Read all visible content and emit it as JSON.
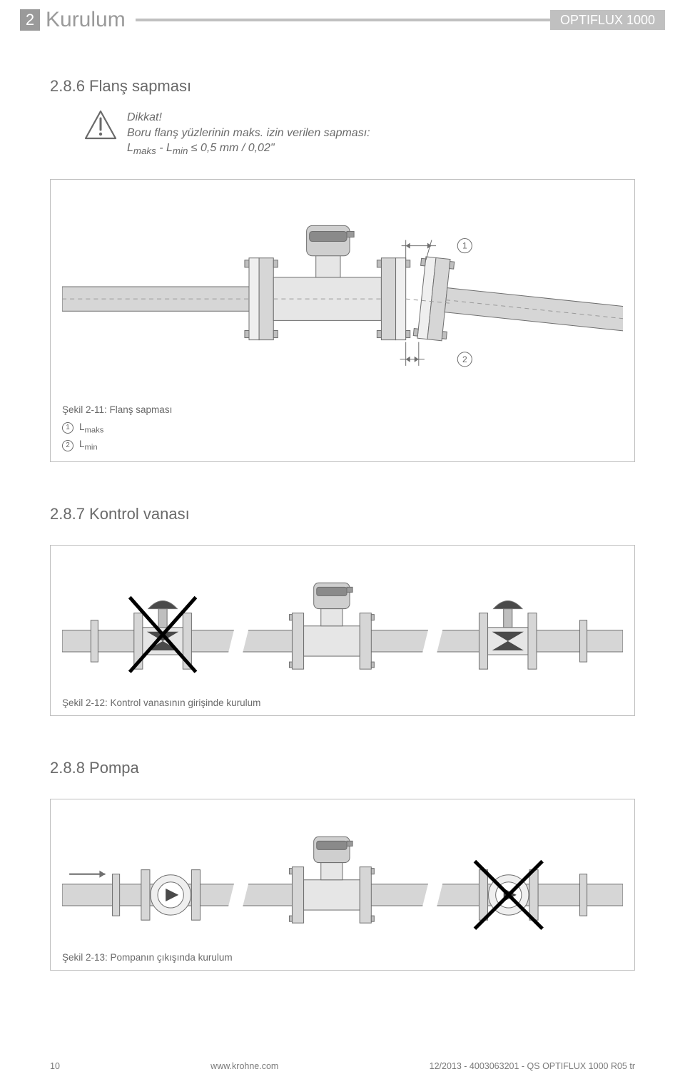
{
  "header": {
    "chapter_number": "2",
    "chapter_title": "Kurulum",
    "brand": "OPTIFLUX 1000"
  },
  "section_2_8_6": {
    "heading": "2.8.6  Flanş sapması",
    "warning": {
      "line1": "Dikkat!",
      "line2": "Boru flanş yüzlerinin maks. izin verilen sapması:",
      "line3_html": "L<sub>maks</sub> - L<sub>min</sub> ≤ 0,5 mm / 0,02\""
    },
    "figure": {
      "caption": "Şekil 2-11: Flanş sapması",
      "callout1": "1",
      "callout2": "2",
      "legend1": "L",
      "legend1_sub": "maks",
      "legend2": "L",
      "legend2_sub": "min"
    }
  },
  "section_2_8_7": {
    "heading": "2.8.7  Kontrol vanası",
    "figure": {
      "caption": "Şekil 2-12: Kontrol vanasının girişinde kurulum"
    }
  },
  "section_2_8_8": {
    "heading": "2.8.8  Pompa",
    "figure": {
      "caption": "Şekil 2-13: Pompanın çıkışında kurulum"
    }
  },
  "footer": {
    "page": "10",
    "url": "www.krohne.com",
    "docref": "12/2013 - 4003063201 - QS OPTIFLUX 1000 R05 tr"
  },
  "colors": {
    "grey_medium": "#9a9a9a",
    "grey_light": "#c0c0c0",
    "grey_text": "#6a6a6a",
    "pipe_fill": "#d6d6d6",
    "outline": "#6f6f6f"
  }
}
